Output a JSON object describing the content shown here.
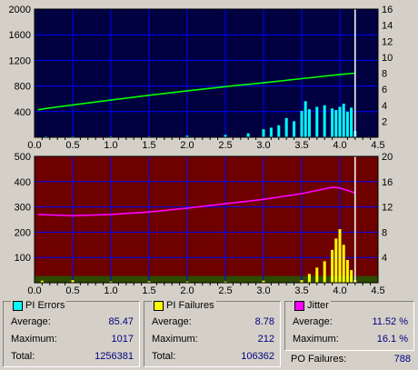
{
  "chart_data": [
    {
      "type": "area",
      "xlim": [
        0,
        4.5
      ],
      "x_ticks": [
        "0.0",
        "0.5",
        "1.0",
        "1.5",
        "2.0",
        "2.5",
        "3.0",
        "3.5",
        "4.0",
        "4.5"
      ],
      "ylim_left": [
        0,
        2000
      ],
      "y_ticks_left": [
        "2000",
        "1600",
        "1200",
        "800",
        "400"
      ],
      "ylim_right": [
        0,
        16
      ],
      "y_ticks_right": [
        "16",
        "14",
        "12",
        "10",
        "8",
        "6",
        "4",
        "2"
      ],
      "grid": true,
      "series": [
        {
          "color": "#00ff00",
          "axis": "left",
          "style": "line",
          "x": [
            0.05,
            0.15,
            0.5,
            1.0,
            1.5,
            2.0,
            2.5,
            3.0,
            3.5,
            4.0,
            4.2
          ],
          "values": [
            430,
            450,
            505,
            580,
            655,
            725,
            790,
            850,
            915,
            980,
            1000
          ]
        },
        {
          "color": "#00ffff",
          "axis": "right",
          "style": "bar",
          "x": [
            0.15,
            0.5,
            1.0,
            1.5,
            2.0,
            2.5,
            2.8,
            3.0,
            3.1,
            3.2,
            3.3,
            3.4,
            3.5,
            3.55,
            3.6,
            3.7,
            3.8,
            3.9,
            3.95,
            4.0,
            4.05,
            4.1,
            4.15,
            4.2
          ],
          "values": [
            0.1,
            0.1,
            0.1,
            0.1,
            0.2,
            0.3,
            0.5,
            1,
            1.2,
            1.5,
            2.4,
            2,
            3.3,
            4.5,
            3.5,
            3.8,
            4,
            3.6,
            3.4,
            3.8,
            4.2,
            3.2,
            3.7,
            0.8
          ]
        }
      ],
      "markers_x": [
        4.2
      ]
    },
    {
      "type": "area",
      "xlim": [
        0,
        4.5
      ],
      "x_ticks": [
        "0.0",
        "0.5",
        "1.0",
        "1.5",
        "2.0",
        "2.5",
        "3.0",
        "3.5",
        "4.0",
        "4.5"
      ],
      "ylim_left": [
        0,
        500
      ],
      "y_ticks_left": [
        "500",
        "400",
        "300",
        "200",
        "100"
      ],
      "ylim_right": [
        0,
        20
      ],
      "y_ticks_right": [
        "20",
        "16",
        "12",
        "8",
        "4"
      ],
      "grid": true,
      "series": [
        {
          "color": "#ff00ff",
          "axis": "right",
          "style": "line",
          "x": [
            0.05,
            0.5,
            1.0,
            1.5,
            2.0,
            2.5,
            3.0,
            3.5,
            3.7,
            3.9,
            4.0,
            4.1,
            4.2
          ],
          "values": [
            10.8,
            10.6,
            10.8,
            11.2,
            11.8,
            12.5,
            13.2,
            14.1,
            14.6,
            15.1,
            15.0,
            14.6,
            14.2
          ]
        },
        {
          "color": "#ffff00",
          "axis": "left",
          "style": "bar",
          "x": [
            0.1,
            0.5,
            1.0,
            1.5,
            2.0,
            2.5,
            3.0,
            3.5,
            3.6,
            3.7,
            3.8,
            3.9,
            3.95,
            4.0,
            4.05,
            4.1,
            4.15,
            4.2
          ],
          "values": [
            8,
            10,
            5,
            6,
            5,
            5,
            8,
            10,
            35,
            60,
            85,
            130,
            175,
            212,
            150,
            90,
            50,
            10
          ]
        }
      ],
      "markers_x": [
        4.2
      ]
    }
  ],
  "stats": {
    "pi_errors": {
      "title": "PI Errors",
      "color": "#00ffff",
      "average_label": "Average:",
      "average": "85.47",
      "maximum_label": "Maximum:",
      "maximum": "1017",
      "total_label": "Total:",
      "total": "1256381"
    },
    "pi_failures": {
      "title": "PI Failures",
      "color": "#ffff00",
      "average_label": "Average:",
      "average": "8.78",
      "maximum_label": "Maximum:",
      "maximum": "212",
      "total_label": "Total:",
      "total": "106362"
    },
    "jitter": {
      "title": "Jitter",
      "color": "#ff00ff",
      "average_label": "Average:",
      "average": "11.52 %",
      "maximum_label": "Maximum:",
      "maximum": "16.1 %"
    },
    "po_failures_label": "PO Failures:",
    "po_failures": "788"
  }
}
